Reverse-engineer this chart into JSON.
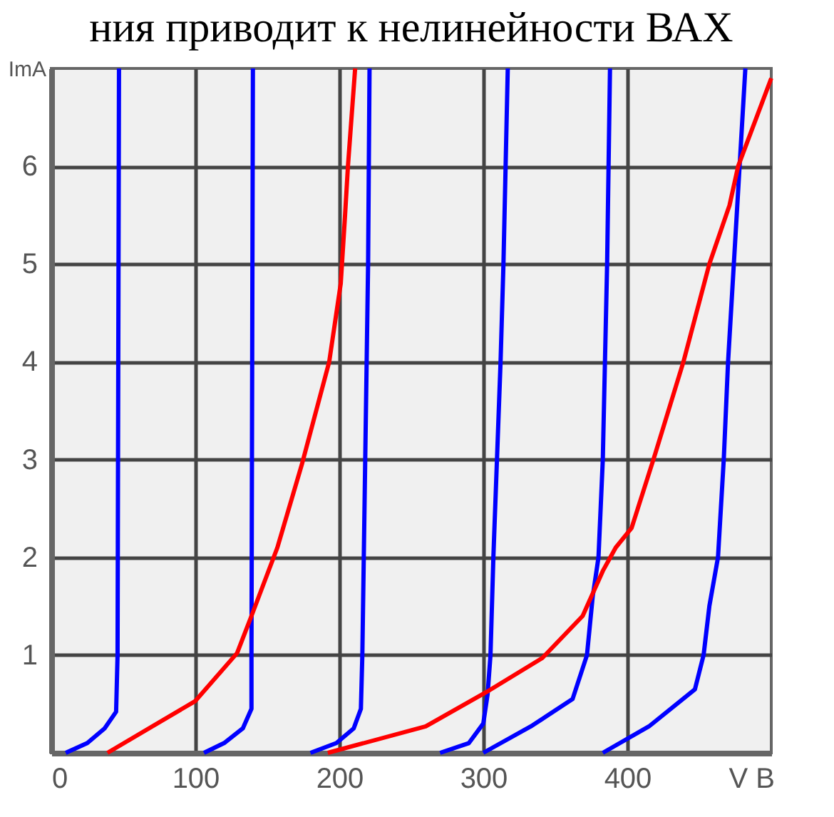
{
  "chart_data": {
    "type": "line",
    "title": "ния приводит к нелинейности ВАХ",
    "xlabel": "V B",
    "ylabel": "ImA",
    "xlim": [
      0,
      500
    ],
    "ylim": [
      0,
      7
    ],
    "xticks": [
      0,
      100,
      200,
      300,
      400
    ],
    "yticks": [
      1,
      2,
      3,
      4,
      5,
      6
    ],
    "grid": true,
    "legend": false,
    "marker": "none",
    "line_style": "solid",
    "series": [
      {
        "color": "#0000ff",
        "x": [
          10,
          25,
          37,
          45,
          46,
          47
        ],
        "values": [
          0,
          0.1,
          0.25,
          0.42,
          1,
          7
        ]
      },
      {
        "color": "#0000ff",
        "x": [
          106,
          120,
          133,
          139,
          139,
          140
        ],
        "values": [
          0,
          0.1,
          0.25,
          0.45,
          1,
          7
        ]
      },
      {
        "color": "#0000ff",
        "x": [
          180,
          198,
          210,
          215,
          216,
          217,
          220,
          221
        ],
        "values": [
          0,
          0.1,
          0.25,
          0.45,
          1,
          2,
          5,
          7
        ]
      },
      {
        "color": "#0000ff",
        "x": [
          270,
          290,
          300,
          303,
          305,
          307,
          312,
          314,
          317
        ],
        "values": [
          0,
          0.1,
          0.3,
          0.6,
          1,
          2,
          4,
          5,
          7
        ]
      },
      {
        "color": "#0000ff",
        "x": [
          300,
          333,
          362,
          372,
          376,
          380,
          383,
          386,
          388
        ],
        "values": [
          0,
          0.27,
          0.55,
          1,
          1.6,
          2,
          3,
          5,
          7
        ]
      },
      {
        "color": "#0000ff",
        "x": [
          383,
          415,
          447,
          453,
          457,
          463,
          467,
          470,
          474,
          482
        ],
        "values": [
          0,
          0.27,
          0.65,
          1,
          1.5,
          2,
          3,
          4,
          5,
          7
        ]
      },
      {
        "color": "#ff0000",
        "x": [
          39,
          100,
          129,
          139,
          157,
          174,
          193,
          201,
          204,
          206,
          211
        ],
        "values": [
          0,
          0.53,
          1.02,
          1.4,
          2.1,
          2.95,
          4,
          4.8,
          5.5,
          6,
          7
        ]
      },
      {
        "color": "#ff0000",
        "x": [
          192,
          260,
          302,
          341,
          369,
          383,
          392,
          403,
          419,
          439,
          457,
          471,
          477,
          500
        ],
        "values": [
          0,
          0.27,
          0.62,
          0.97,
          1.4,
          1.86,
          2.1,
          2.3,
          3.04,
          4,
          5,
          5.6,
          6,
          6.9
        ]
      }
    ]
  }
}
